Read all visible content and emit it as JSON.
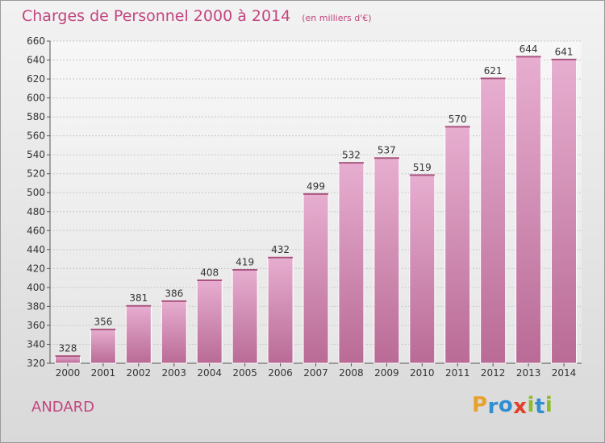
{
  "chart_data": {
    "type": "bar",
    "title": "Charges de Personnel 2000 à 2014",
    "subtitle": "(en milliers d'€)",
    "categories": [
      "2000",
      "2001",
      "2002",
      "2003",
      "2004",
      "2005",
      "2006",
      "2007",
      "2008",
      "2009",
      "2010",
      "2011",
      "2012",
      "2013",
      "2014"
    ],
    "values": [
      328,
      356,
      381,
      386,
      408,
      419,
      432,
      499,
      532,
      537,
      519,
      570,
      621,
      644,
      641
    ],
    "ylim": [
      320,
      660
    ],
    "yticks": [
      320,
      340,
      360,
      380,
      400,
      420,
      440,
      460,
      480,
      500,
      520,
      540,
      560,
      580,
      600,
      620,
      640,
      660
    ],
    "grid": true,
    "bar_color": "#d990b8",
    "title_color": "#c2457f"
  },
  "footer": {
    "location": "ANDARD",
    "logo_letters": [
      {
        "ch": "P",
        "color": "#e8a22c"
      },
      {
        "ch": "r",
        "color": "#2f8fd1"
      },
      {
        "ch": "o",
        "color": "#2f8fd1"
      },
      {
        "ch": "x",
        "color": "#e0402a"
      },
      {
        "ch": "i",
        "color": "#8dbb2c"
      },
      {
        "ch": "t",
        "color": "#2f8fd1"
      },
      {
        "ch": "i",
        "color": "#8dbb2c"
      }
    ]
  }
}
